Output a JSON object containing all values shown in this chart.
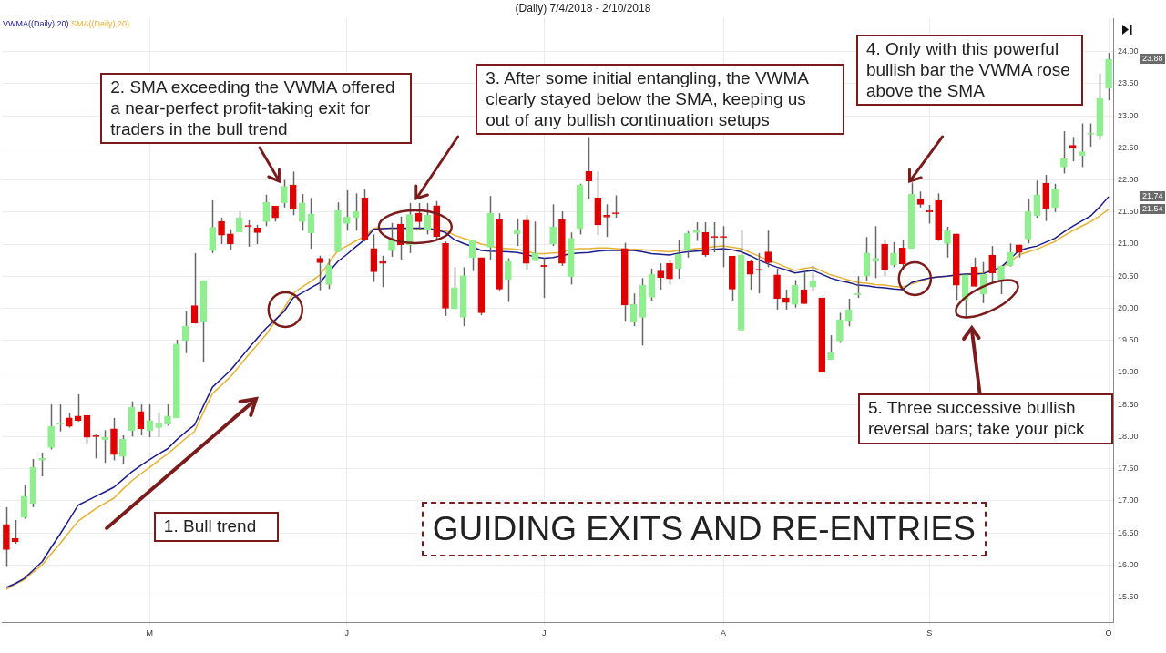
{
  "chart_data": {
    "type": "candlestick",
    "title": "(Daily)  7/4/2018 - 2/10/2018",
    "categories": [
      null,
      null,
      null,
      null,
      null,
      null,
      null,
      null,
      null,
      null,
      null,
      null,
      null,
      null,
      null,
      null,
      "M",
      null,
      null,
      null,
      null,
      null,
      null,
      null,
      null,
      null,
      null,
      null,
      null,
      null,
      null,
      null,
      null,
      null,
      null,
      null,
      null,
      null,
      "J",
      null,
      null,
      null,
      null,
      null,
      null,
      null,
      null,
      null,
      null,
      null,
      null,
      null,
      null,
      null,
      null,
      null,
      null,
      null,
      null,
      null,
      "J",
      null,
      null,
      null,
      null,
      null,
      null,
      null,
      null,
      null,
      null,
      null,
      null,
      null,
      null,
      null,
      null,
      null,
      null,
      null,
      "A",
      null,
      null,
      null,
      null,
      null,
      null,
      null,
      null,
      null,
      null,
      null,
      null,
      null,
      null,
      null,
      null,
      null,
      null,
      null,
      null,
      null,
      null,
      "S",
      null,
      null,
      null,
      null,
      null,
      null,
      null,
      null,
      null,
      null,
      null,
      null,
      null,
      null,
      null,
      null,
      null,
      null,
      null,
      "O"
    ],
    "ohlc": [
      [
        16.63,
        16.9,
        15.97,
        16.24
      ],
      [
        16.41,
        16.7,
        16.33,
        16.36
      ],
      [
        16.74,
        17.24,
        16.72,
        17.07
      ],
      [
        16.96,
        17.65,
        16.9,
        17.52
      ],
      [
        17.63,
        17.75,
        17.38,
        17.66
      ],
      [
        17.83,
        18.5,
        17.8,
        18.16
      ],
      [
        18.19,
        18.5,
        18.08,
        18.21
      ],
      [
        18.29,
        18.37,
        18.14,
        18.16
      ],
      [
        18.32,
        18.66,
        18.23,
        18.25
      ],
      [
        18.33,
        18.33,
        17.89,
        17.99
      ],
      [
        18.02,
        18.03,
        17.66,
        18.0
      ],
      [
        17.95,
        18.1,
        17.59,
        17.99
      ],
      [
        18.12,
        18.29,
        17.63,
        17.72
      ],
      [
        17.69,
        18.02,
        17.58,
        17.96
      ],
      [
        18.09,
        18.55,
        18.0,
        18.46
      ],
      [
        18.39,
        18.5,
        18.02,
        18.12
      ],
      [
        18.09,
        18.5,
        17.99,
        18.25
      ],
      [
        18.14,
        18.38,
        17.99,
        18.21
      ],
      [
        18.19,
        18.5,
        18.17,
        18.32
      ],
      [
        18.29,
        19.51,
        18.29,
        19.44
      ],
      [
        19.5,
        19.95,
        19.3,
        19.72
      ],
      [
        20.04,
        20.86,
        19.76,
        19.77
      ],
      [
        19.78,
        20.43,
        19.16,
        20.43
      ],
      [
        20.9,
        21.68,
        20.86,
        21.26
      ],
      [
        21.35,
        21.41,
        21.0,
        21.14
      ],
      [
        21.16,
        21.23,
        20.91,
        21.0
      ],
      [
        21.19,
        21.51,
        21.19,
        21.41
      ],
      [
        21.29,
        21.37,
        20.96,
        21.27
      ],
      [
        21.25,
        21.3,
        21.0,
        21.18
      ],
      [
        21.35,
        21.77,
        21.28,
        21.65
      ],
      [
        21.59,
        21.59,
        21.35,
        21.41
      ],
      [
        21.64,
        22.0,
        21.57,
        21.9
      ],
      [
        21.92,
        22.13,
        21.45,
        21.54
      ],
      [
        21.35,
        21.78,
        21.21,
        21.64
      ],
      [
        21.17,
        21.72,
        20.93,
        21.47
      ],
      [
        20.78,
        20.82,
        20.28,
        20.71
      ],
      [
        20.37,
        20.78,
        20.3,
        20.67
      ],
      [
        20.88,
        21.65,
        20.88,
        21.52
      ],
      [
        21.32,
        21.84,
        21.21,
        21.42
      ],
      [
        21.41,
        21.79,
        21.21,
        21.51
      ],
      [
        21.72,
        21.85,
        21.04,
        21.07
      ],
      [
        20.93,
        21.15,
        20.41,
        20.57
      ],
      [
        20.73,
        20.82,
        20.33,
        20.7
      ],
      [
        20.9,
        21.33,
        20.8,
        21.09
      ],
      [
        21.31,
        21.43,
        20.76,
        20.99
      ],
      [
        20.99,
        21.64,
        20.86,
        21.46
      ],
      [
        21.48,
        21.64,
        21.23,
        21.35
      ],
      [
        21.23,
        21.64,
        21.15,
        21.45
      ],
      [
        21.6,
        21.67,
        21.07,
        21.12
      ],
      [
        21.01,
        21.04,
        19.88,
        20.0
      ],
      [
        19.99,
        20.64,
        19.99,
        20.32
      ],
      [
        19.86,
        20.64,
        19.72,
        20.51
      ],
      [
        20.79,
        21.06,
        20.58,
        21.06
      ],
      [
        20.79,
        20.79,
        19.89,
        19.93
      ],
      [
        20.95,
        21.75,
        20.76,
        21.48
      ],
      [
        21.38,
        21.48,
        20.26,
        20.3
      ],
      [
        20.45,
        20.78,
        20.1,
        20.73
      ],
      [
        21.16,
        21.4,
        20.97,
        21.22
      ],
      [
        21.37,
        21.45,
        20.6,
        20.7
      ],
      [
        20.74,
        21.35,
        20.74,
        20.86
      ],
      [
        20.67,
        20.78,
        20.16,
        20.65
      ],
      [
        21.0,
        21.62,
        20.97,
        21.27
      ],
      [
        21.39,
        21.51,
        20.66,
        20.7
      ],
      [
        20.49,
        21.18,
        20.37,
        21.09
      ],
      [
        21.24,
        21.94,
        21.15,
        21.92
      ],
      [
        22.13,
        22.67,
        21.71,
        21.98
      ],
      [
        21.72,
        22.13,
        21.14,
        21.3
      ],
      [
        21.45,
        21.62,
        21.11,
        21.42
      ],
      [
        21.49,
        21.76,
        21.41,
        21.47
      ],
      [
        20.93,
        21.02,
        19.79,
        20.05
      ],
      [
        19.78,
        20.23,
        19.72,
        20.06
      ],
      [
        19.86,
        20.47,
        19.42,
        20.36
      ],
      [
        20.17,
        20.62,
        20.12,
        20.53
      ],
      [
        20.58,
        20.7,
        20.29,
        20.48
      ],
      [
        20.7,
        20.76,
        20.37,
        20.46
      ],
      [
        20.62,
        21.06,
        20.46,
        20.84
      ],
      [
        20.9,
        21.2,
        20.79,
        21.17
      ],
      [
        21.18,
        21.34,
        21.05,
        21.22
      ],
      [
        21.18,
        21.34,
        20.8,
        20.83
      ],
      [
        21.12,
        21.34,
        20.87,
        21.1
      ],
      [
        21.12,
        21.28,
        20.64,
        21.1
      ],
      [
        20.81,
        20.81,
        20.12,
        20.3
      ],
      [
        19.66,
        21.21,
        19.65,
        20.83
      ],
      [
        20.73,
        20.76,
        20.29,
        20.53
      ],
      [
        20.61,
        20.86,
        20.23,
        20.59
      ],
      [
        20.88,
        21.21,
        20.64,
        20.71
      ],
      [
        20.52,
        20.62,
        19.98,
        20.15
      ],
      [
        20.16,
        20.29,
        19.98,
        20.09
      ],
      [
        20.06,
        20.44,
        20.01,
        20.36
      ],
      [
        20.29,
        20.57,
        20.07,
        20.07
      ],
      [
        20.33,
        20.66,
        20.27,
        20.43
      ],
      [
        20.16,
        20.16,
        19.0,
        19.0
      ],
      [
        19.2,
        19.58,
        19.2,
        19.31
      ],
      [
        19.49,
        19.93,
        19.46,
        19.82
      ],
      [
        19.79,
        20.15,
        19.72,
        19.98
      ],
      [
        20.21,
        20.5,
        20.16,
        20.23
      ],
      [
        20.5,
        21.11,
        20.43,
        20.86
      ],
      [
        20.73,
        21.28,
        20.47,
        20.78
      ],
      [
        21.0,
        21.07,
        20.5,
        20.6
      ],
      [
        20.67,
        21.03,
        20.64,
        20.86
      ],
      [
        20.94,
        21.07,
        20.59,
        20.69
      ],
      [
        20.93,
        21.96,
        20.93,
        21.78
      ],
      [
        21.7,
        21.82,
        21.57,
        21.62
      ],
      [
        21.52,
        21.61,
        21.32,
        21.5
      ],
      [
        21.68,
        21.79,
        21.05,
        21.06
      ],
      [
        21.01,
        21.27,
        20.79,
        21.21
      ],
      [
        21.16,
        21.16,
        20.13,
        20.36
      ],
      [
        20.13,
        20.52,
        19.84,
        20.52
      ],
      [
        20.64,
        20.79,
        20.34,
        20.34
      ],
      [
        20.22,
        20.72,
        20.08,
        20.53
      ],
      [
        20.83,
        20.97,
        20.41,
        20.55
      ],
      [
        20.44,
        20.66,
        20.22,
        20.66
      ],
      [
        20.66,
        21.01,
        20.65,
        20.87
      ],
      [
        20.99,
        20.99,
        20.79,
        20.87
      ],
      [
        21.08,
        21.71,
        21.01,
        21.51
      ],
      [
        21.44,
        21.99,
        21.41,
        21.77
      ],
      [
        21.95,
        22.08,
        21.36,
        21.55
      ],
      [
        21.57,
        21.94,
        21.5,
        21.86
      ],
      [
        22.2,
        22.76,
        22.1,
        22.33
      ],
      [
        22.54,
        22.67,
        22.29,
        22.49
      ],
      [
        22.38,
        22.88,
        22.2,
        22.44
      ],
      [
        22.71,
        22.88,
        22.52,
        22.73
      ],
      [
        22.69,
        23.66,
        22.63,
        23.27
      ],
      [
        23.43,
        23.98,
        23.24,
        23.88
      ]
    ],
    "colors": [
      "#e00000",
      "#e00000",
      "#90ee90",
      "#90ee90",
      "#90ee90",
      "#90ee90",
      "#90ee90",
      "#e00000",
      "#e00000",
      "#e00000",
      "#e00000",
      "#90ee90",
      "#e00000",
      "#90ee90",
      "#90ee90",
      "#e00000",
      "#90ee90",
      "#90ee90",
      "#90ee90",
      "#90ee90",
      "#90ee90",
      "#e00000",
      "#90ee90",
      "#90ee90",
      "#e00000",
      "#e00000",
      "#90ee90",
      "#e00000",
      "#e00000",
      "#90ee90",
      "#e00000",
      "#90ee90",
      "#e00000",
      "#90ee90",
      "#90ee90",
      "#e00000",
      "#90ee90",
      "#90ee90",
      "#90ee90",
      "#90ee90",
      "#e00000",
      "#e00000",
      "#e00000",
      "#90ee90",
      "#e00000",
      "#90ee90",
      "#e00000",
      "#90ee90",
      "#e00000",
      "#e00000",
      "#90ee90",
      "#90ee90",
      "#90ee90",
      "#e00000",
      "#90ee90",
      "#e00000",
      "#90ee90",
      "#90ee90",
      "#e00000",
      "#90ee90",
      "#e00000",
      "#90ee90",
      "#e00000",
      "#90ee90",
      "#90ee90",
      "#e00000",
      "#e00000",
      "#e00000",
      "#e00000",
      "#e00000",
      "#90ee90",
      "#90ee90",
      "#90ee90",
      "#e00000",
      "#e00000",
      "#90ee90",
      "#90ee90",
      "#90ee90",
      "#e00000",
      "#e00000",
      "#e00000",
      "#e00000",
      "#90ee90",
      "#e00000",
      "#e00000",
      "#e00000",
      "#e00000",
      "#e00000",
      "#90ee90",
      "#e00000",
      "#90ee90",
      "#e00000",
      "#90ee90",
      "#90ee90",
      "#90ee90",
      "#90ee90",
      "#90ee90",
      "#90ee90",
      "#e00000",
      "#90ee90",
      "#e00000",
      "#90ee90",
      "#e00000",
      "#e00000",
      "#e00000",
      "#90ee90",
      "#e00000",
      "#90ee90",
      "#e00000",
      "#90ee90",
      "#e00000",
      "#90ee90",
      "#90ee90",
      "#e00000",
      "#90ee90",
      "#90ee90",
      "#e00000",
      "#90ee90",
      "#90ee90",
      "#e00000",
      "#90ee90",
      "#90ee90",
      "#90ee90",
      "#90ee90"
    ],
    "series": [
      {
        "type": "line",
        "name": "VWMA((Daily),20)",
        "color": "#1c1c8c",
        "values": [
          15.65,
          15.71,
          15.79,
          15.92,
          16.05,
          16.27,
          16.48,
          16.7,
          16.93,
          17.0,
          17.07,
          17.14,
          17.21,
          17.33,
          17.45,
          17.55,
          17.64,
          17.73,
          17.81,
          17.95,
          18.07,
          18.18,
          18.48,
          18.77,
          18.9,
          19.03,
          19.2,
          19.37,
          19.53,
          19.69,
          19.82,
          19.95,
          20.16,
          20.24,
          20.32,
          20.4,
          null,
          20.73,
          20.84,
          20.96,
          21.07,
          21.23,
          21.24,
          21.25,
          21.25,
          21.25,
          21.25,
          21.25,
          21.22,
          21.18,
          21.07,
          21.01,
          20.96,
          20.9,
          20.89,
          null,
          20.88,
          20.87,
          20.84,
          20.8,
          20.78,
          20.79,
          null,
          20.85,
          20.86,
          20.87,
          20.89,
          20.9,
          20.9,
          20.9,
          20.9,
          20.88,
          20.85,
          20.84,
          20.83,
          20.86,
          20.88,
          20.89,
          20.9,
          20.92,
          20.93,
          20.91,
          20.88,
          20.82,
          20.75,
          20.69,
          20.64,
          20.6,
          20.55,
          20.57,
          20.59,
          20.53,
          20.47,
          20.43,
          20.4,
          20.36,
          20.35,
          20.33,
          20.32,
          20.3,
          20.29,
          20.4,
          20.44,
          20.47,
          20.49,
          20.5,
          20.52,
          20.53,
          20.53,
          20.54,
          20.59,
          20.64,
          20.77,
          20.9,
          20.94,
          20.97,
          21.03,
          21.09,
          21.19,
          21.28,
          21.36,
          21.44,
          21.58,
          21.74
        ]
      },
      {
        "type": "line",
        "name": "SMA((Daily),20)",
        "color": "#e8b030",
        "values": [
          15.62,
          15.7,
          15.77,
          15.89,
          16.0,
          16.17,
          16.33,
          16.51,
          16.68,
          16.78,
          16.88,
          16.96,
          17.04,
          17.18,
          17.31,
          17.42,
          17.52,
          17.63,
          17.73,
          17.85,
          17.97,
          18.08,
          18.38,
          18.67,
          18.8,
          18.93,
          19.1,
          19.27,
          19.43,
          19.59,
          19.8,
          20.0,
          20.23,
          20.33,
          20.42,
          20.52,
          20.71,
          20.9,
          20.97,
          21.05,
          21.12,
          21.25,
          21.25,
          null,
          null,
          21.24,
          21.24,
          21.23,
          21.22,
          21.21,
          21.14,
          21.09,
          21.05,
          21.0,
          20.97,
          20.94,
          20.93,
          20.92,
          20.89,
          20.85,
          20.85,
          20.86,
          20.87,
          20.92,
          20.93,
          20.93,
          20.94,
          20.94,
          20.93,
          20.92,
          20.92,
          20.91,
          20.9,
          20.89,
          20.88,
          20.9,
          20.91,
          20.93,
          20.94,
          20.96,
          20.97,
          20.95,
          20.93,
          20.87,
          20.81,
          20.75,
          20.7,
          20.64,
          20.59,
          20.62,
          20.64,
          20.58,
          20.52,
          20.48,
          20.44,
          20.4,
          20.39,
          20.37,
          20.36,
          20.34,
          20.33,
          20.38,
          20.42,
          20.47,
          20.49,
          20.5,
          null,
          20.53,
          null,
          20.55,
          20.59,
          20.62,
          20.73,
          20.83,
          20.88,
          20.92,
          20.98,
          21.04,
          21.13,
          21.21,
          21.28,
          21.35,
          21.44,
          21.54
        ]
      }
    ],
    "ylim": [
      15.11,
      24.52
    ],
    "yticks": [
      {
        "value": 15.5,
        "label": "15.50"
      },
      {
        "value": 16,
        "label": "16.00"
      },
      {
        "value": 16.5,
        "label": "16.50"
      },
      {
        "value": 17,
        "label": "17.00"
      },
      {
        "value": 17.5,
        "label": "17.50"
      },
      {
        "value": 18,
        "label": "18.00"
      },
      {
        "value": 18.5,
        "label": "18.50"
      },
      {
        "value": 19,
        "label": "19.00"
      },
      {
        "value": 19.5,
        "label": "19.50"
      },
      {
        "value": 20,
        "label": "20.00"
      },
      {
        "value": 20.5,
        "label": "20.50"
      },
      {
        "value": 21,
        "label": "21.00"
      },
      {
        "value": 21.5,
        "label": "21.50"
      },
      {
        "value": 22,
        "label": "22.00"
      },
      {
        "value": 22.5,
        "label": "22.50"
      },
      {
        "value": 23,
        "label": "23.00"
      },
      {
        "value": 23.5,
        "label": "23.50"
      },
      {
        "value": 24,
        "label": "24.00"
      }
    ],
    "grid": true,
    "legend": "top left",
    "marker": "none",
    "line_style": "solid",
    "annotations": [
      "1. Bull trend",
      "2. SMA exceeding the VWMA offered a near-perfect profit-taking exit for traders in the bull trend",
      "3. After some initial entangling, the VWMA clearly stayed below the SMA, keeping us out of any bullish continuation setups",
      "4. Only with this powerful bullish bar the VWMA rose above the SMA",
      "5. Three successive bullish reversal bars; take your pick",
      "GUIDING EXITS AND RE-ENTRIES",
      "23.88",
      "21.74",
      "21.54"
    ]
  }
}
